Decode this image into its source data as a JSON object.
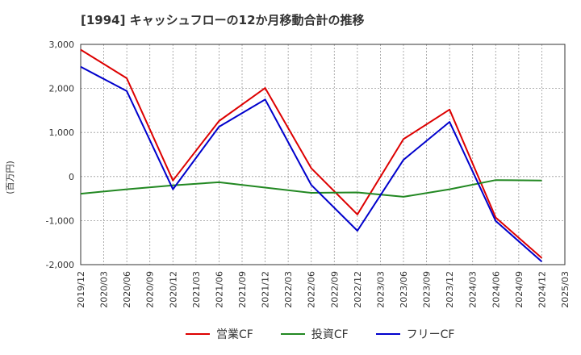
{
  "chart_data": {
    "type": "line",
    "title": "[1994]  キャッシュフローの12か月移動合計の推移",
    "ylabel": "(百万円)",
    "xlabel": "",
    "ylim": [
      -2000,
      3000
    ],
    "yticks": [
      3000,
      2000,
      1000,
      0,
      -1000,
      -2000
    ],
    "ytick_labels": [
      "3,000",
      "2,000",
      "1,000",
      "0",
      "-1,000",
      "-2,000"
    ],
    "x_ticks": [
      "2019/12",
      "2020/03",
      "2020/06",
      "2020/09",
      "2020/12",
      "2021/03",
      "2021/06",
      "2021/09",
      "2021/12",
      "2022/03",
      "2022/06",
      "2022/09",
      "2022/12",
      "2023/03",
      "2023/06",
      "2023/09",
      "2023/12",
      "2024/03",
      "2024/06",
      "2024/09",
      "2024/12",
      "2025/03"
    ],
    "grid": true,
    "legend_position": "bottom",
    "series": [
      {
        "name": "営業CF",
        "color": "#dd0000",
        "points": [
          [
            "2019/12",
            2880
          ],
          [
            "2020/06",
            2230
          ],
          [
            "2020/12",
            -90
          ],
          [
            "2021/06",
            1260
          ],
          [
            "2021/12",
            2010
          ],
          [
            "2022/06",
            190
          ],
          [
            "2022/12",
            -860
          ],
          [
            "2023/06",
            850
          ],
          [
            "2023/12",
            1520
          ],
          [
            "2024/06",
            -930
          ],
          [
            "2024/12",
            -1850
          ]
        ]
      },
      {
        "name": "投資CF",
        "color": "#228822",
        "points": [
          [
            "2019/12",
            -390
          ],
          [
            "2020/06",
            -290
          ],
          [
            "2020/12",
            -200
          ],
          [
            "2021/06",
            -130
          ],
          [
            "2021/12",
            -250
          ],
          [
            "2022/06",
            -370
          ],
          [
            "2022/12",
            -360
          ],
          [
            "2023/06",
            -460
          ],
          [
            "2023/12",
            -290
          ],
          [
            "2024/06",
            -80
          ],
          [
            "2024/12",
            -90
          ]
        ]
      },
      {
        "name": "フリーCF",
        "color": "#0000cc",
        "points": [
          [
            "2019/12",
            2490
          ],
          [
            "2020/06",
            1940
          ],
          [
            "2020/12",
            -290
          ],
          [
            "2021/06",
            1130
          ],
          [
            "2021/12",
            1750
          ],
          [
            "2022/06",
            -190
          ],
          [
            "2022/12",
            -1230
          ],
          [
            "2023/06",
            380
          ],
          [
            "2023/12",
            1240
          ],
          [
            "2024/06",
            -1010
          ],
          [
            "2024/12",
            -1930
          ]
        ]
      }
    ]
  }
}
